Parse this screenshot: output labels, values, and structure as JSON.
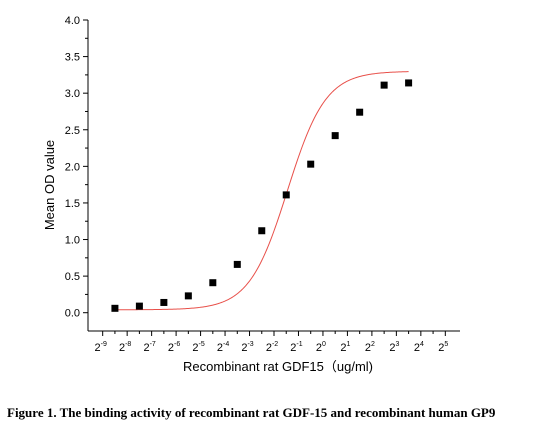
{
  "chart_data": {
    "type": "scatter",
    "title": "",
    "xlabel": "Recombinant rat  GDF15（ug/ml)",
    "ylabel": "Mean OD value",
    "x_scale": "log2",
    "x_ticks": [
      {
        "base": "2",
        "exp": "-9"
      },
      {
        "base": "2",
        "exp": "-8"
      },
      {
        "base": "2",
        "exp": "-7"
      },
      {
        "base": "2",
        "exp": "-6"
      },
      {
        "base": "2",
        "exp": "-5"
      },
      {
        "base": "2",
        "exp": "-4"
      },
      {
        "base": "2",
        "exp": "-3"
      },
      {
        "base": "2",
        "exp": "-2"
      },
      {
        "base": "2",
        "exp": "-1"
      },
      {
        "base": "2",
        "exp": "0"
      },
      {
        "base": "2",
        "exp": "1"
      },
      {
        "base": "2",
        "exp": "2"
      },
      {
        "base": "2",
        "exp": "3"
      },
      {
        "base": "2",
        "exp": "4"
      },
      {
        "base": "2",
        "exp": "5"
      }
    ],
    "y_ticks": [
      "0.0",
      "0.5",
      "1.0",
      "1.5",
      "2.0",
      "2.5",
      "3.0",
      "3.5",
      "4.0"
    ],
    "xlim_log2": [
      -9.6,
      5.6
    ],
    "ylim": [
      -0.25,
      4.0
    ],
    "grid": false,
    "series": [
      {
        "marker": "square",
        "color": "#000000",
        "points": [
          {
            "x_log2": -8.5,
            "y": 0.06
          },
          {
            "x_log2": -7.5,
            "y": 0.09
          },
          {
            "x_log2": -6.5,
            "y": 0.14
          },
          {
            "x_log2": -5.5,
            "y": 0.23
          },
          {
            "x_log2": -4.5,
            "y": 0.41
          },
          {
            "x_log2": -3.5,
            "y": 0.66
          },
          {
            "x_log2": -2.5,
            "y": 1.12
          },
          {
            "x_log2": -1.5,
            "y": 1.61
          },
          {
            "x_log2": -0.5,
            "y": 2.03
          },
          {
            "x_log2": 0.5,
            "y": 2.42
          },
          {
            "x_log2": 1.5,
            "y": 2.74
          },
          {
            "x_log2": 2.5,
            "y": 3.11
          },
          {
            "x_log2": 3.5,
            "y": 3.14
          }
        ]
      }
    ],
    "fit_curve": {
      "color": "#e8504a",
      "bottom": 0.04,
      "top": 3.3,
      "ec50_log2": -1.45,
      "hill_log2_slope": 0.78
    }
  },
  "caption": "Figure 1. The binding activity of recombinant rat GDF-15 and recombinant human GP9"
}
